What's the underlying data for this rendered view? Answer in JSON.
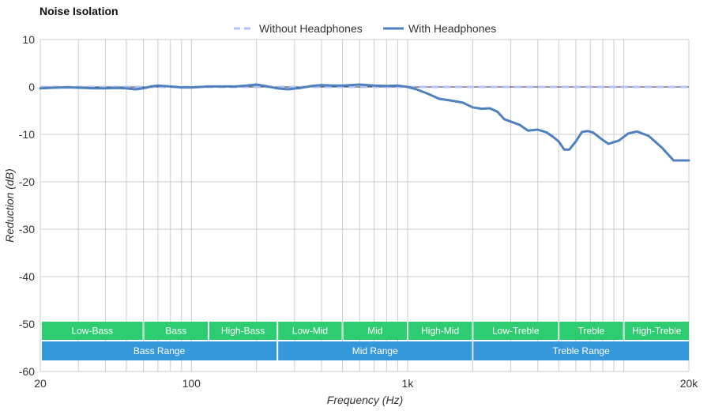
{
  "chart_data": {
    "type": "line",
    "title": "Noise Isolation",
    "xlabel": "Frequency (Hz)",
    "ylabel": "Reduction (dB)",
    "x_scale": "log",
    "xlim": [
      20,
      20000
    ],
    "ylim": [
      -60,
      10
    ],
    "x_ticks": [
      {
        "value": 20,
        "label": "20"
      },
      {
        "value": 100,
        "label": "100"
      },
      {
        "value": 1000,
        "label": "1k"
      },
      {
        "value": 20000,
        "label": "20k"
      }
    ],
    "y_ticks": [
      10,
      0,
      -10,
      -20,
      -30,
      -40,
      -50,
      -60
    ],
    "grid": true,
    "legend_position": "top-center",
    "series": [
      {
        "name": "Without Headphones",
        "style": "dashed",
        "color": "#b3c3f5",
        "x": [
          20,
          20000
        ],
        "y": [
          0,
          0
        ]
      },
      {
        "name": "With Headphones",
        "style": "solid",
        "color": "#4e81bd",
        "x": [
          20,
          22,
          25,
          28,
          32,
          36,
          40,
          45,
          50,
          55,
          60,
          65,
          70,
          80,
          90,
          100,
          110,
          120,
          140,
          160,
          180,
          200,
          220,
          250,
          280,
          320,
          360,
          400,
          450,
          500,
          550,
          600,
          700,
          800,
          900,
          1000,
          1100,
          1250,
          1400,
          1600,
          1800,
          2000,
          2200,
          2400,
          2600,
          2800,
          3000,
          3300,
          3600,
          4000,
          4400,
          4700,
          5000,
          5300,
          5600,
          6000,
          6400,
          6800,
          7200,
          8000,
          8500,
          9500,
          10500,
          11500,
          13000,
          15000,
          17000,
          18500,
          20000
        ],
        "y": [
          -0.3,
          -0.2,
          -0.1,
          -0.1,
          -0.2,
          -0.3,
          -0.3,
          -0.2,
          -0.3,
          -0.5,
          -0.3,
          0.1,
          0.3,
          0.1,
          -0.1,
          -0.1,
          0.0,
          0.1,
          0.1,
          0.1,
          0.3,
          0.5,
          0.2,
          -0.3,
          -0.5,
          -0.2,
          0.2,
          0.4,
          0.3,
          0.3,
          0.4,
          0.5,
          0.3,
          0.2,
          0.3,
          0.0,
          -0.5,
          -1.5,
          -2.5,
          -2.9,
          -3.3,
          -4.3,
          -4.6,
          -4.5,
          -5.2,
          -6.8,
          -7.3,
          -8.0,
          -9.2,
          -9.0,
          -9.6,
          -10.5,
          -11.5,
          -13.2,
          -13.2,
          -11.5,
          -9.5,
          -9.3,
          -9.6,
          -11.2,
          -12.0,
          -11.3,
          -9.8,
          -9.4,
          -10.3,
          -12.8,
          -15.5,
          -15.5,
          -15.5
        ]
      }
    ],
    "bands": [
      {
        "row": 1,
        "label": "Low-Bass",
        "from": 20,
        "to": 60
      },
      {
        "row": 1,
        "label": "Bass",
        "from": 60,
        "to": 120
      },
      {
        "row": 1,
        "label": "High-Bass",
        "from": 120,
        "to": 250
      },
      {
        "row": 1,
        "label": "Low-Mid",
        "from": 250,
        "to": 500
      },
      {
        "row": 1,
        "label": "Mid",
        "from": 500,
        "to": 1000
      },
      {
        "row": 1,
        "label": "High-Mid",
        "from": 1000,
        "to": 2000
      },
      {
        "row": 1,
        "label": "Low-Treble",
        "from": 2000,
        "to": 5000
      },
      {
        "row": 1,
        "label": "Treble",
        "from": 5000,
        "to": 10000
      },
      {
        "row": 1,
        "label": "High-Treble",
        "from": 10000,
        "to": 20000
      },
      {
        "row": 2,
        "label": "Bass Range",
        "from": 20,
        "to": 250
      },
      {
        "row": 2,
        "label": "Mid Range",
        "from": 250,
        "to": 2000
      },
      {
        "row": 2,
        "label": "Treble Range",
        "from": 2000,
        "to": 20000
      }
    ],
    "colors": {
      "band_row1": "#2ecc71",
      "band_row2": "#3598db",
      "grid": "#cccccc",
      "zero_line": "#333333"
    }
  }
}
